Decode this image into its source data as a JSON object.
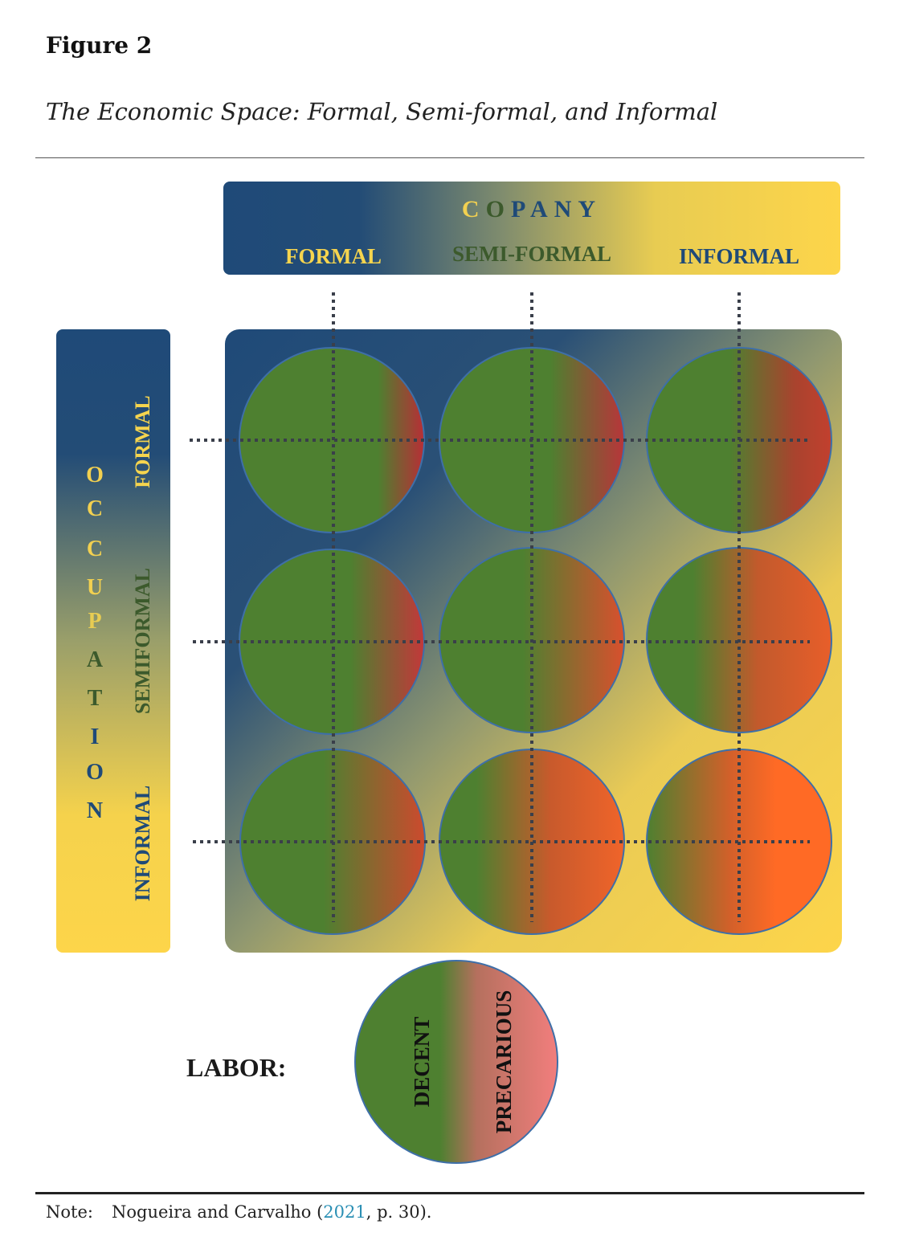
{
  "figure": {
    "number": "Figure 2",
    "title": "The Economic Space: Formal, Semi-formal, and Informal"
  },
  "company": {
    "heading_letters": [
      "C",
      "O",
      "P",
      "A",
      "N",
      "Y"
    ],
    "columns": [
      "FORMAL",
      "SEMI-FORMAL",
      "INFORMAL"
    ]
  },
  "occupation": {
    "heading_letters": [
      "O",
      "C",
      "C",
      "U",
      "P",
      "A",
      "T",
      "I",
      "O",
      "N"
    ],
    "rows": [
      "FORMAL",
      "SEMIFORMAL",
      "INFORMAL"
    ]
  },
  "labor": {
    "label": "LABOR:",
    "decent": "DECENT",
    "precarious": "PRECARIOUS"
  },
  "colors": {
    "blue": "#1f4a78",
    "yellow": "#fdd54a",
    "green": "#4e8030",
    "red": "#b23a30",
    "orange": "#ff6a25",
    "pink": "#ef7f7b",
    "olive": "#3c5a2c"
  },
  "note": {
    "label": "Note:",
    "text_before": "Nogueira and Carvalho (",
    "year_link": "2021",
    "text_after": ", p. 30)."
  }
}
